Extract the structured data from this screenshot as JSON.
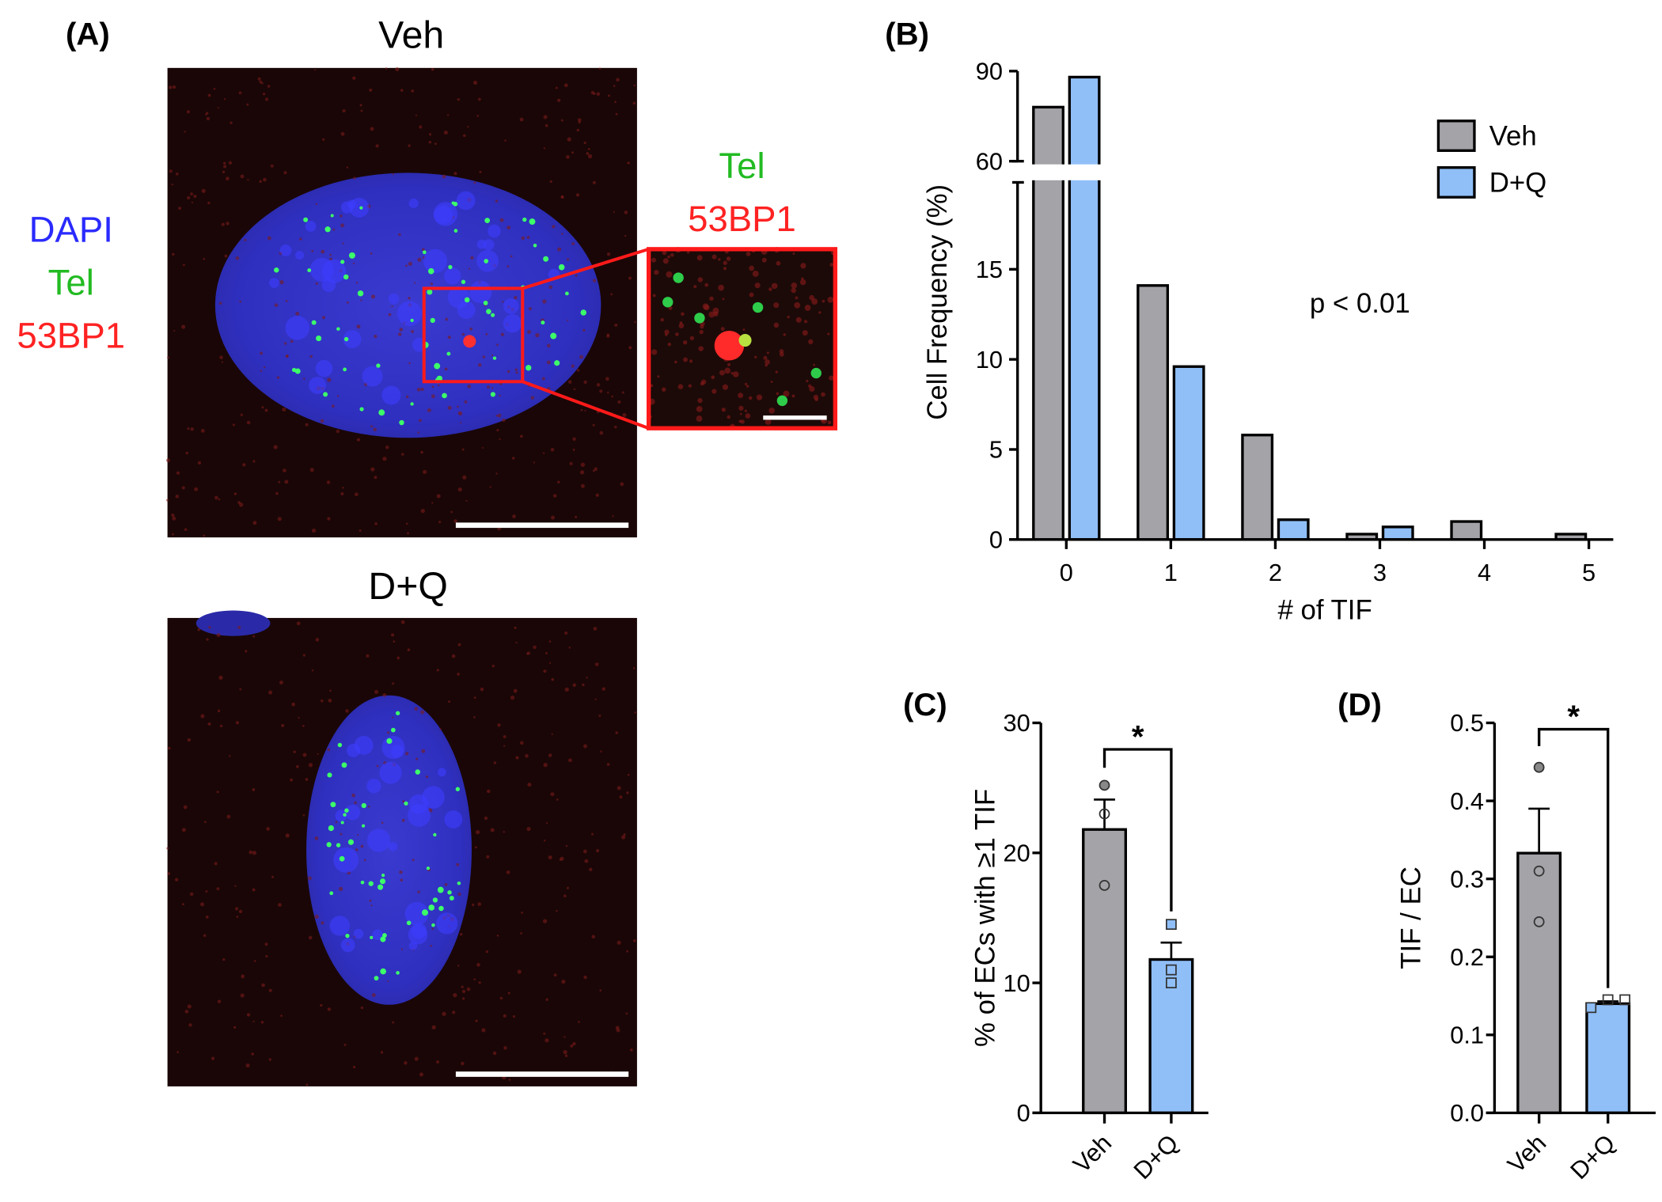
{
  "panel_a": {
    "label": "(A)",
    "title_top": "Veh",
    "title_bottom": "D+Q",
    "channels": [
      {
        "text": "DAPI",
        "color": "#2a2aff"
      },
      {
        "text": "Tel",
        "color": "#22bb22"
      },
      {
        "text": "53BP1",
        "color": "#ff2222"
      }
    ],
    "inset_channels": [
      {
        "text": "Tel",
        "color": "#22bb22"
      },
      {
        "text": "53BP1",
        "color": "#ff2222"
      }
    ]
  },
  "colors": {
    "veh": "#a3a3a8",
    "dq": "#90bff7"
  },
  "chart_data": [
    {
      "panel": "(B)",
      "type": "bar",
      "title": "",
      "xlabel": "# of TIF",
      "ylabel": "Cell  Frequency (%)",
      "categories": [
        "0",
        "1",
        "2",
        "3",
        "4",
        "5"
      ],
      "series": [
        {
          "name": "Veh",
          "values": [
            78,
            14.1,
            5.8,
            0.3,
            1.0,
            0.3
          ]
        },
        {
          "name": "D+Q",
          "values": [
            88,
            9.6,
            1.1,
            0.7,
            0,
            0
          ]
        }
      ],
      "y_segments": [
        {
          "range": [
            0,
            18
          ],
          "ticks": [
            "0",
            "5",
            "10",
            "15"
          ]
        },
        {
          "range": [
            60,
            90
          ],
          "ticks": [
            "60",
            "90"
          ]
        }
      ],
      "legend_placement": "top-right",
      "annotation": "p < 0.01"
    },
    {
      "panel": "(C)",
      "type": "bar",
      "ylabel": "% of ECs with ≥1 TIF",
      "categories": [
        "Veh",
        "D+Q"
      ],
      "values": [
        21.8,
        11.8
      ],
      "sem_upper": [
        24.1,
        13.1
      ],
      "points": [
        [
          25.2,
          23.0,
          17.5
        ],
        [
          14.5,
          11.0,
          10.0
        ]
      ],
      "ylim": [
        0,
        30
      ],
      "yticks": [
        "0",
        "10",
        "20",
        "30"
      ],
      "significance": "*"
    },
    {
      "panel": "(D)",
      "type": "bar",
      "ylabel": "TIF / EC",
      "categories": [
        "Veh",
        "D+Q"
      ],
      "values": [
        0.333,
        0.14
      ],
      "sem_upper": [
        0.39,
        0.143
      ],
      "points": [
        [
          0.443,
          0.31,
          0.245
        ],
        [
          0.135,
          0.145,
          0.145
        ]
      ],
      "ylim": [
        0,
        0.5
      ],
      "yticks": [
        "0.0",
        "0.1",
        "0.2",
        "0.3",
        "0.4",
        "0.5"
      ],
      "significance": "*"
    }
  ]
}
